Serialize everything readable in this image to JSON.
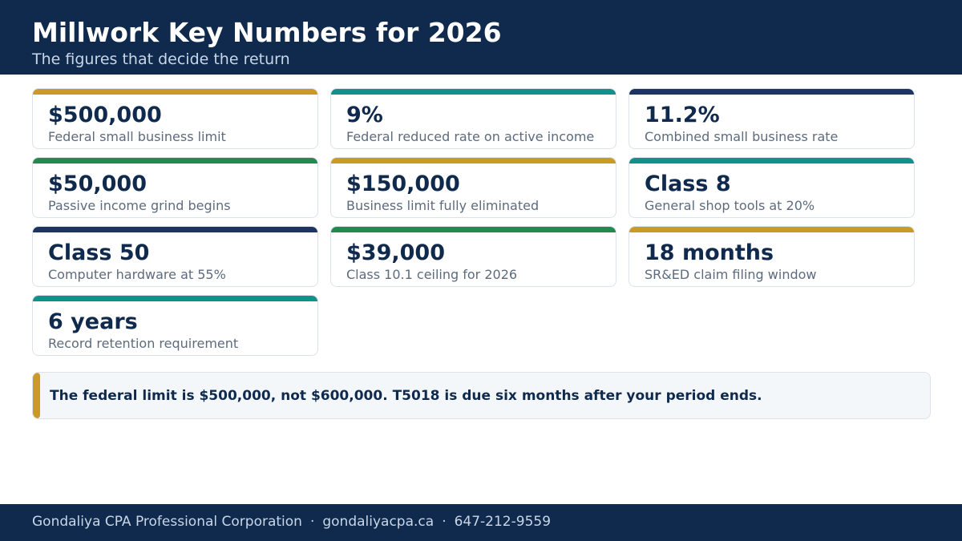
{
  "header": {
    "title": "Millwork Key Numbers for 2026",
    "subtitle": "The figures that decide the return"
  },
  "colors": {
    "navy": "#0f2a4d",
    "gold": "#c99a26",
    "teal": "#12918a",
    "green": "#238a4f",
    "dark_navy": "#1d3560"
  },
  "cards": [
    {
      "value": "$500,000",
      "label": "Federal small business limit",
      "accent": "#c99a26"
    },
    {
      "value": "9%",
      "label": "Federal reduced rate on active income",
      "accent": "#12918a"
    },
    {
      "value": "11.2%",
      "label": "Combined small business rate",
      "accent": "#1d3560"
    },
    {
      "value": "$50,000",
      "label": "Passive income grind begins",
      "accent": "#238a4f"
    },
    {
      "value": "$150,000",
      "label": "Business limit fully eliminated",
      "accent": "#c99a26"
    },
    {
      "value": "Class 8",
      "label": "General shop tools at 20%",
      "accent": "#12918a"
    },
    {
      "value": "Class 50",
      "label": "Computer hardware at 55%",
      "accent": "#1d3560"
    },
    {
      "value": "$39,000",
      "label": "Class 10.1 ceiling for 2026",
      "accent": "#238a4f"
    },
    {
      "value": "18 months",
      "label": "SR&ED claim filing window",
      "accent": "#c99a26"
    },
    {
      "value": "6 years",
      "label": "Record retention requirement",
      "accent": "#12918a"
    }
  ],
  "note": {
    "text": "The federal limit is $500,000, not $600,000. T5018 is due six months after your period ends.",
    "accent": "#c99a26"
  },
  "footer": {
    "company": "Gondaliya CPA Professional Corporation",
    "website": "gondaliyacpa.ca",
    "phone": "647-212-9559",
    "separator": "·"
  }
}
